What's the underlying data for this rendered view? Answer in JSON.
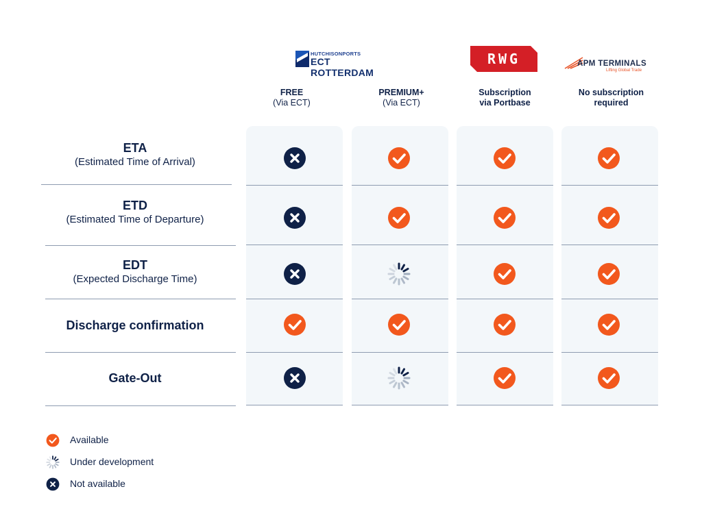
{
  "logos": {
    "ect": {
      "small_text": "HUTCHISONPORTS",
      "big_text": "ECT ROTTERDAM",
      "icon": "ect-flag-icon"
    },
    "rwg": {
      "text": "RWG",
      "color": "#d41f26"
    },
    "apm": {
      "text": "APM TERMINALS",
      "tagline": "Lifting Global Trade",
      "accent": "#e8552a"
    }
  },
  "columns": [
    {
      "line1": "FREE",
      "line2": "(Via ECT)"
    },
    {
      "line1": "PREMIUM+",
      "line2": "(Via ECT)"
    },
    {
      "line1": "Subscription",
      "line2": "via Portbase"
    },
    {
      "line1": "No subscription",
      "line2": "required"
    }
  ],
  "rows": [
    {
      "title": "ETA",
      "subtitle": "(Estimated Time of Arrival)",
      "status": [
        "not-available",
        "available",
        "available",
        "available"
      ]
    },
    {
      "title": "ETD",
      "subtitle": "(Estimated Time of Departure)",
      "status": [
        "not-available",
        "available",
        "available",
        "available"
      ]
    },
    {
      "title": "EDT",
      "subtitle": "(Expected Discharge Time)",
      "status": [
        "not-available",
        "under-development",
        "available",
        "available"
      ]
    },
    {
      "title": "Discharge confirmation",
      "subtitle": "",
      "status": [
        "available",
        "available",
        "available",
        "available"
      ]
    },
    {
      "title": "Gate-Out",
      "subtitle": "",
      "status": [
        "not-available",
        "under-development",
        "available",
        "available"
      ]
    }
  ],
  "legend": [
    {
      "status": "available",
      "label": "Available"
    },
    {
      "status": "under-development",
      "label": "Under development"
    },
    {
      "status": "not-available",
      "label": "Not available"
    }
  ],
  "colors": {
    "available": "#f2581d",
    "not_available": "#0f2147",
    "under_development": "#9aa6b8",
    "panel": "#f3f7fa",
    "divider": "#8d9bb0"
  }
}
